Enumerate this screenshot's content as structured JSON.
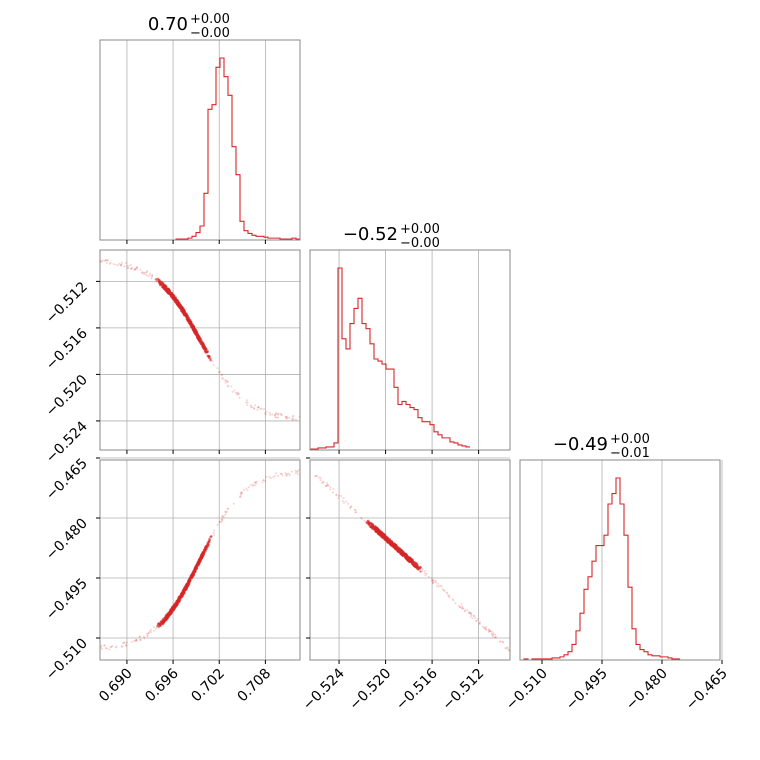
{
  "chart_data": {
    "type": "corner",
    "color": "#d62728",
    "parameters": [
      {
        "title": {
          "value": "0.70",
          "upper": "+0.00",
          "lower": "−0.00"
        },
        "range": [
          0.6865,
          0.7125
        ],
        "ticks": [
          0.69,
          0.696,
          0.702,
          0.708
        ],
        "tick_labels": [
          "0.690",
          "0.696",
          "0.702",
          "0.708"
        ],
        "histogram": {
          "edges_start": 0.6865,
          "bin_width": 0.00052,
          "counts": [
            0,
            0,
            0,
            0,
            0,
            0,
            0,
            0,
            0,
            0,
            0,
            0,
            0,
            0,
            0,
            0,
            0,
            0,
            0,
            1,
            1,
            1,
            2,
            4,
            8,
            15,
            50,
            140,
            145,
            185,
            195,
            175,
            155,
            100,
            70,
            20,
            10,
            7,
            5,
            4,
            4,
            3,
            2,
            2,
            2,
            1,
            1,
            1,
            2,
            1
          ]
        }
      },
      {
        "title": {
          "value": "−0.52",
          "upper": "+0.00",
          "lower": "−0.00"
        },
        "range": [
          -0.5265,
          -0.5093
        ],
        "ticks": [
          -0.524,
          -0.52,
          -0.516,
          -0.512
        ],
        "tick_labels": [
          "−0.524",
          "−0.520",
          "−0.516",
          "−0.512"
        ],
        "histogram": {
          "edges_start": -0.5265,
          "bin_width": 0.000344,
          "counts": [
            1,
            1,
            2,
            2,
            3,
            3,
            7,
            180,
            110,
            100,
            125,
            140,
            150,
            125,
            120,
            105,
            90,
            88,
            85,
            80,
            80,
            62,
            45,
            48,
            45,
            42,
            40,
            32,
            28,
            28,
            25,
            18,
            15,
            12,
            12,
            8,
            7,
            5,
            4,
            3
          ]
        }
      },
      {
        "title": {
          "value": "−0.49",
          "upper": "+0.00",
          "lower": "−0.01"
        },
        "range": [
          -0.5155,
          -0.4655
        ],
        "ticks": [
          -0.51,
          -0.495,
          -0.48,
          -0.465
        ],
        "tick_labels": [
          "−0.510",
          "−0.495",
          "−0.480",
          "−0.465"
        ],
        "histogram": {
          "edges_start": -0.5155,
          "bin_width": 0.001,
          "counts": [
            0,
            1,
            0,
            1,
            1,
            1,
            1,
            1,
            2,
            2,
            3,
            5,
            8,
            15,
            28,
            45,
            68,
            80,
            95,
            110,
            110,
            120,
            150,
            160,
            175,
            150,
            120,
            70,
            30,
            15,
            10,
            8,
            5,
            4,
            4,
            3,
            3,
            2,
            1,
            1
          ]
        }
      }
    ],
    "pairs": [
      {
        "x_param": 0,
        "y_param": 1
      },
      {
        "x_param": 0,
        "y_param": 2
      },
      {
        "x_param": 1,
        "y_param": 2
      }
    ]
  }
}
